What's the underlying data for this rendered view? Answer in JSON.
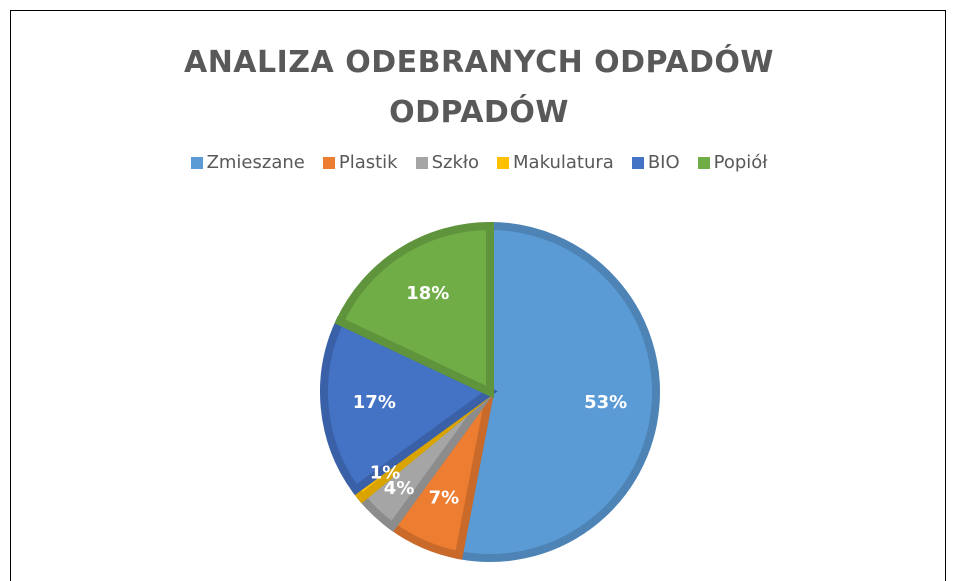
{
  "chart_data": {
    "type": "pie",
    "title": "ANALIZA ODEBRANYCH ODPADÓW ODPADÓW",
    "categories": [
      "Zmieszane",
      "Plastik",
      "Szkło",
      "Makulatura",
      "BIO",
      "Popiół"
    ],
    "values": [
      53,
      7,
      4,
      1,
      17,
      18
    ],
    "value_labels": [
      "53%",
      "7%",
      "4%",
      "1%",
      "17%",
      "18%"
    ],
    "colors": [
      "#5b9bd5",
      "#ed7d31",
      "#a5a5a5",
      "#ffc000",
      "#4472c4",
      "#70ad47"
    ],
    "legend": "top"
  }
}
